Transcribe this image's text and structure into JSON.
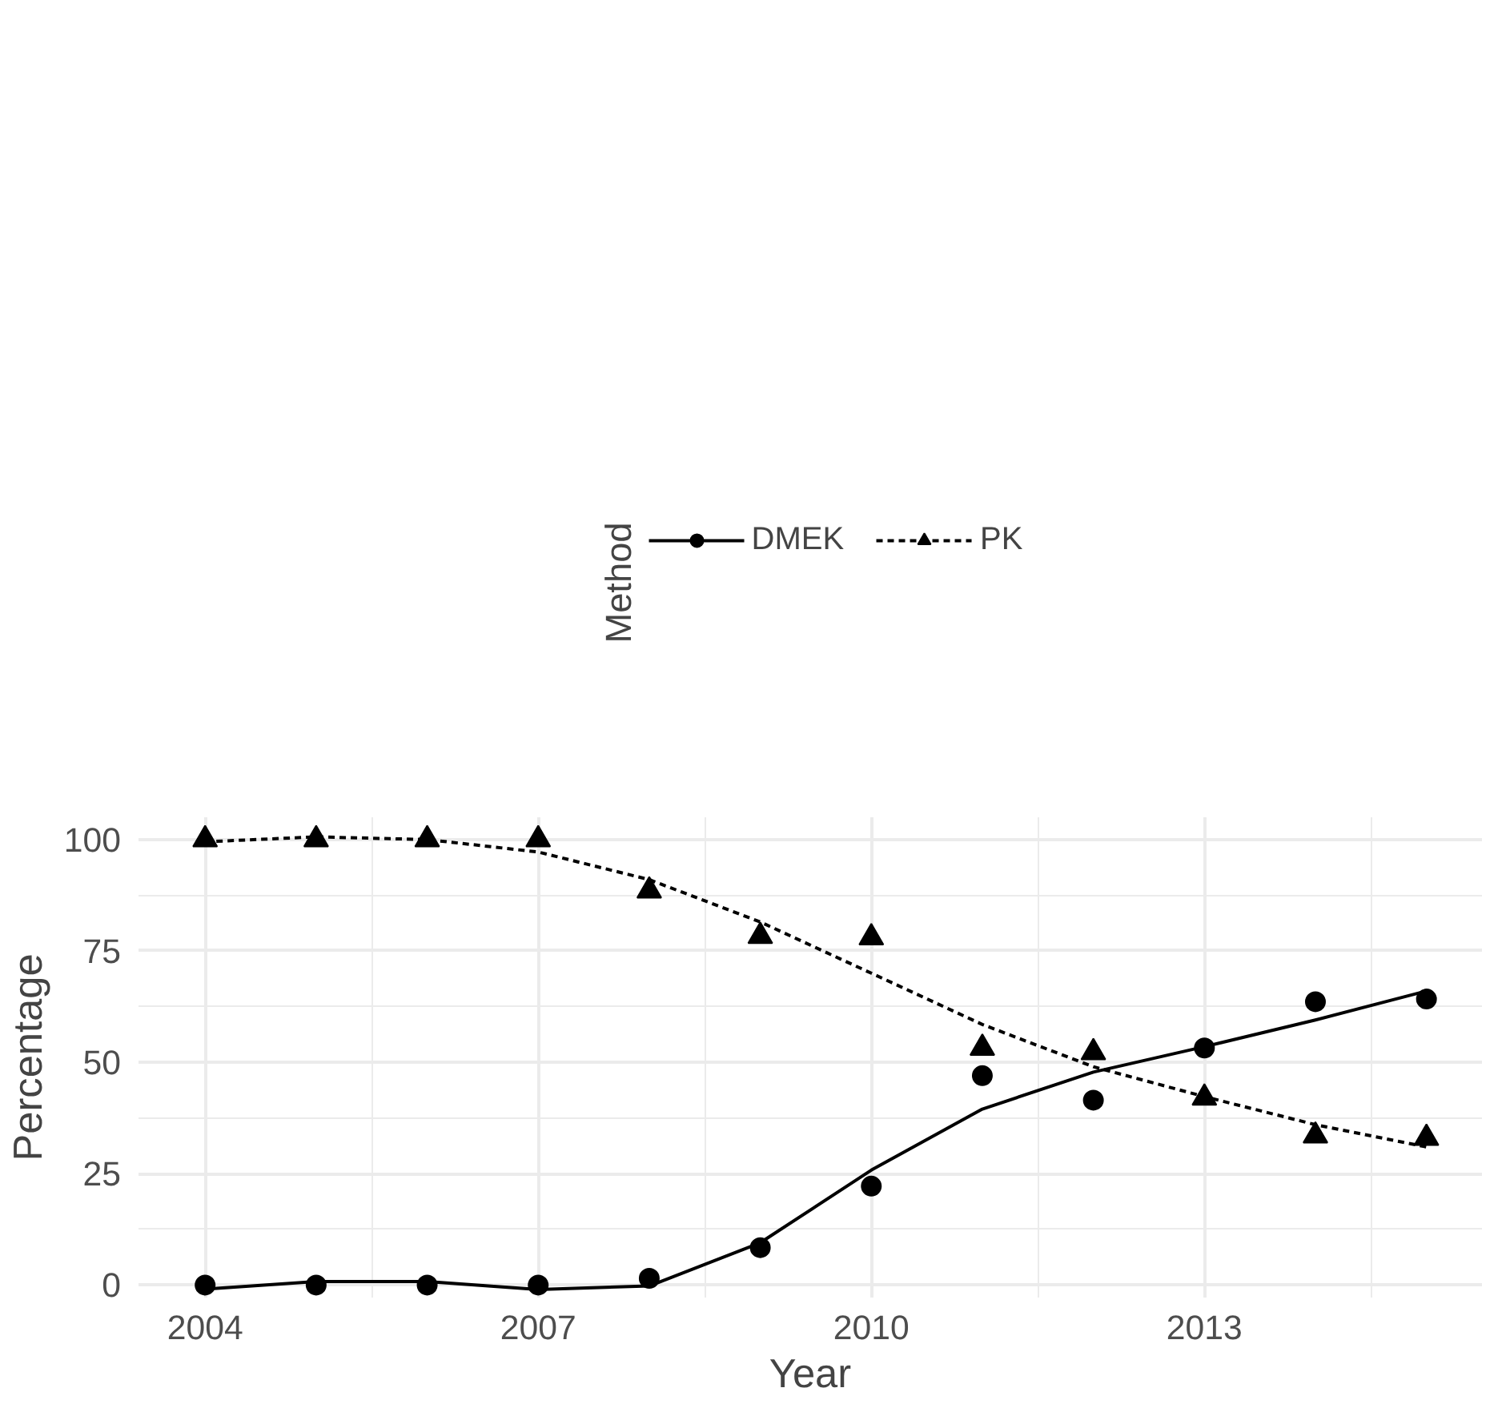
{
  "chart_data": {
    "type": "line",
    "xlabel": "Year",
    "ylabel": "Percentage",
    "legend_title": "Method",
    "legend": "top",
    "x": [
      2004,
      2005,
      2006,
      2007,
      2008,
      2009,
      2010,
      2011,
      2012,
      2013,
      2014,
      2015
    ],
    "series": [
      {
        "name": "DMEK",
        "color": "#000000",
        "line_style": "solid",
        "values": [
          -0.9,
          0.8,
          0.8,
          -1,
          -0.2,
          9.5,
          25.8,
          39.5,
          47.8,
          53.5,
          59.5,
          66
        ]
      },
      {
        "type": "scatter",
        "color": "#000000",
        "marker": "circle",
        "values": [
          0,
          0,
          0,
          0,
          1.5,
          8.4,
          22.2,
          47,
          41.5,
          53.2,
          63.6,
          64.2
        ]
      },
      {
        "name": "PK",
        "color": "#000000",
        "line_style": "dashed",
        "values": [
          99.5,
          100.6,
          100,
          97.2,
          91,
          81.5,
          70,
          58.5,
          49,
          42.3,
          36,
          31
        ]
      },
      {
        "type": "scatter",
        "color": "#000000",
        "marker": "triangle",
        "values": [
          100,
          100,
          100,
          100,
          88.5,
          78.3,
          78,
          53.2,
          52.2,
          42,
          33.5,
          33
        ]
      }
    ],
    "xlim": [
      2003.4,
      2015.5
    ],
    "xticks": [
      2004,
      2007,
      2010,
      2013
    ],
    "ylim": [
      -2.8,
      105
    ],
    "yticks": [
      0,
      25,
      50,
      75,
      100
    ],
    "grid": true
  }
}
